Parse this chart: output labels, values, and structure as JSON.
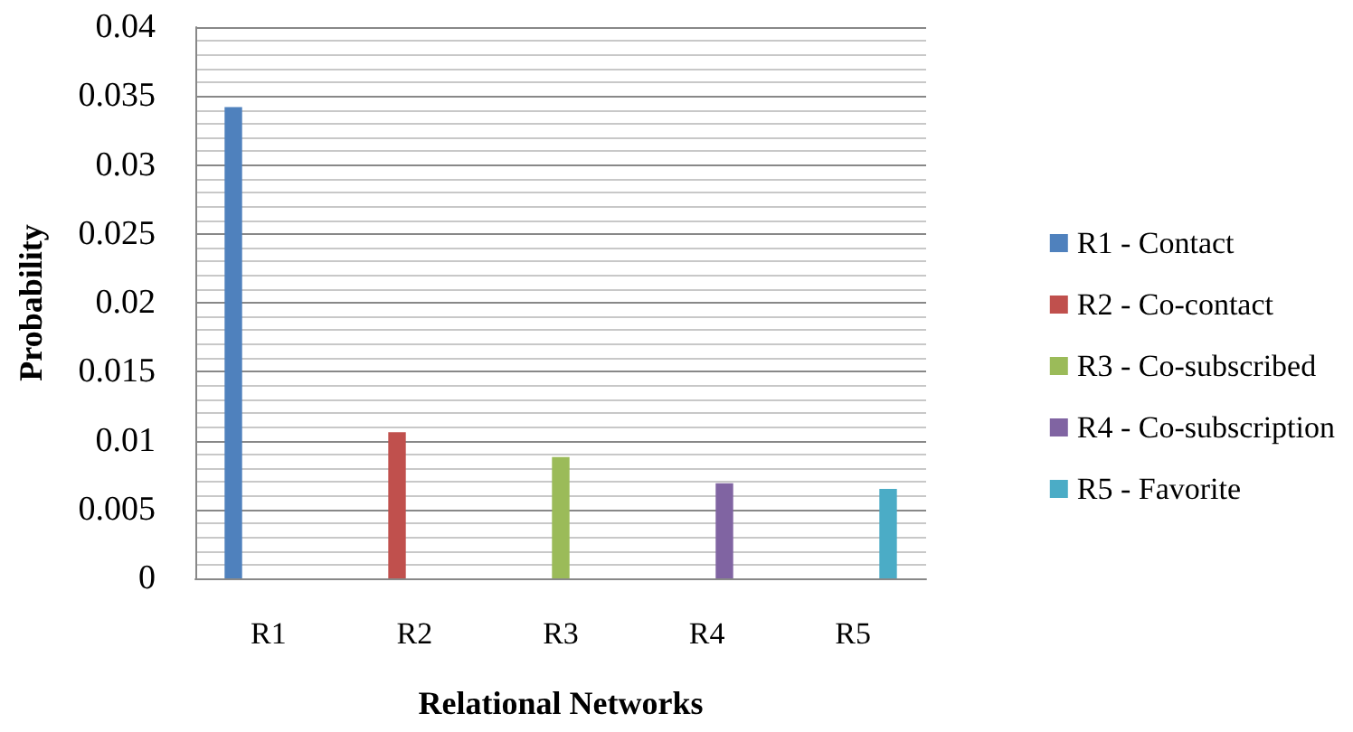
{
  "chart_data": {
    "type": "bar",
    "xlabel": "Relational Networks",
    "ylabel": "Probability",
    "categories": [
      "R1",
      "R2",
      "R3",
      "R4",
      "R5"
    ],
    "series": [
      {
        "name": "R1 - Contact",
        "color": "#4f81bd",
        "values": [
          0.0342,
          null,
          null,
          null,
          null
        ]
      },
      {
        "name": "R2 - Co-contact",
        "color": "#c0504d",
        "values": [
          null,
          0.0106,
          null,
          null,
          null
        ]
      },
      {
        "name": "R3 - Co-subscribed",
        "color": "#9bbb59",
        "values": [
          null,
          null,
          0.0088,
          null,
          null
        ]
      },
      {
        "name": "R4 - Co-subscription",
        "color": "#8064a2",
        "values": [
          null,
          null,
          null,
          0.0069,
          null
        ]
      },
      {
        "name": "R5 - Favorite",
        "color": "#4bacc6",
        "values": [
          null,
          null,
          null,
          null,
          0.0065
        ]
      }
    ],
    "ylim": [
      0,
      0.04
    ],
    "yticks": [
      0,
      0.005,
      0.01,
      0.015,
      0.02,
      0.025,
      0.03,
      0.035,
      0.04
    ],
    "grid": "y",
    "legend": "right"
  }
}
